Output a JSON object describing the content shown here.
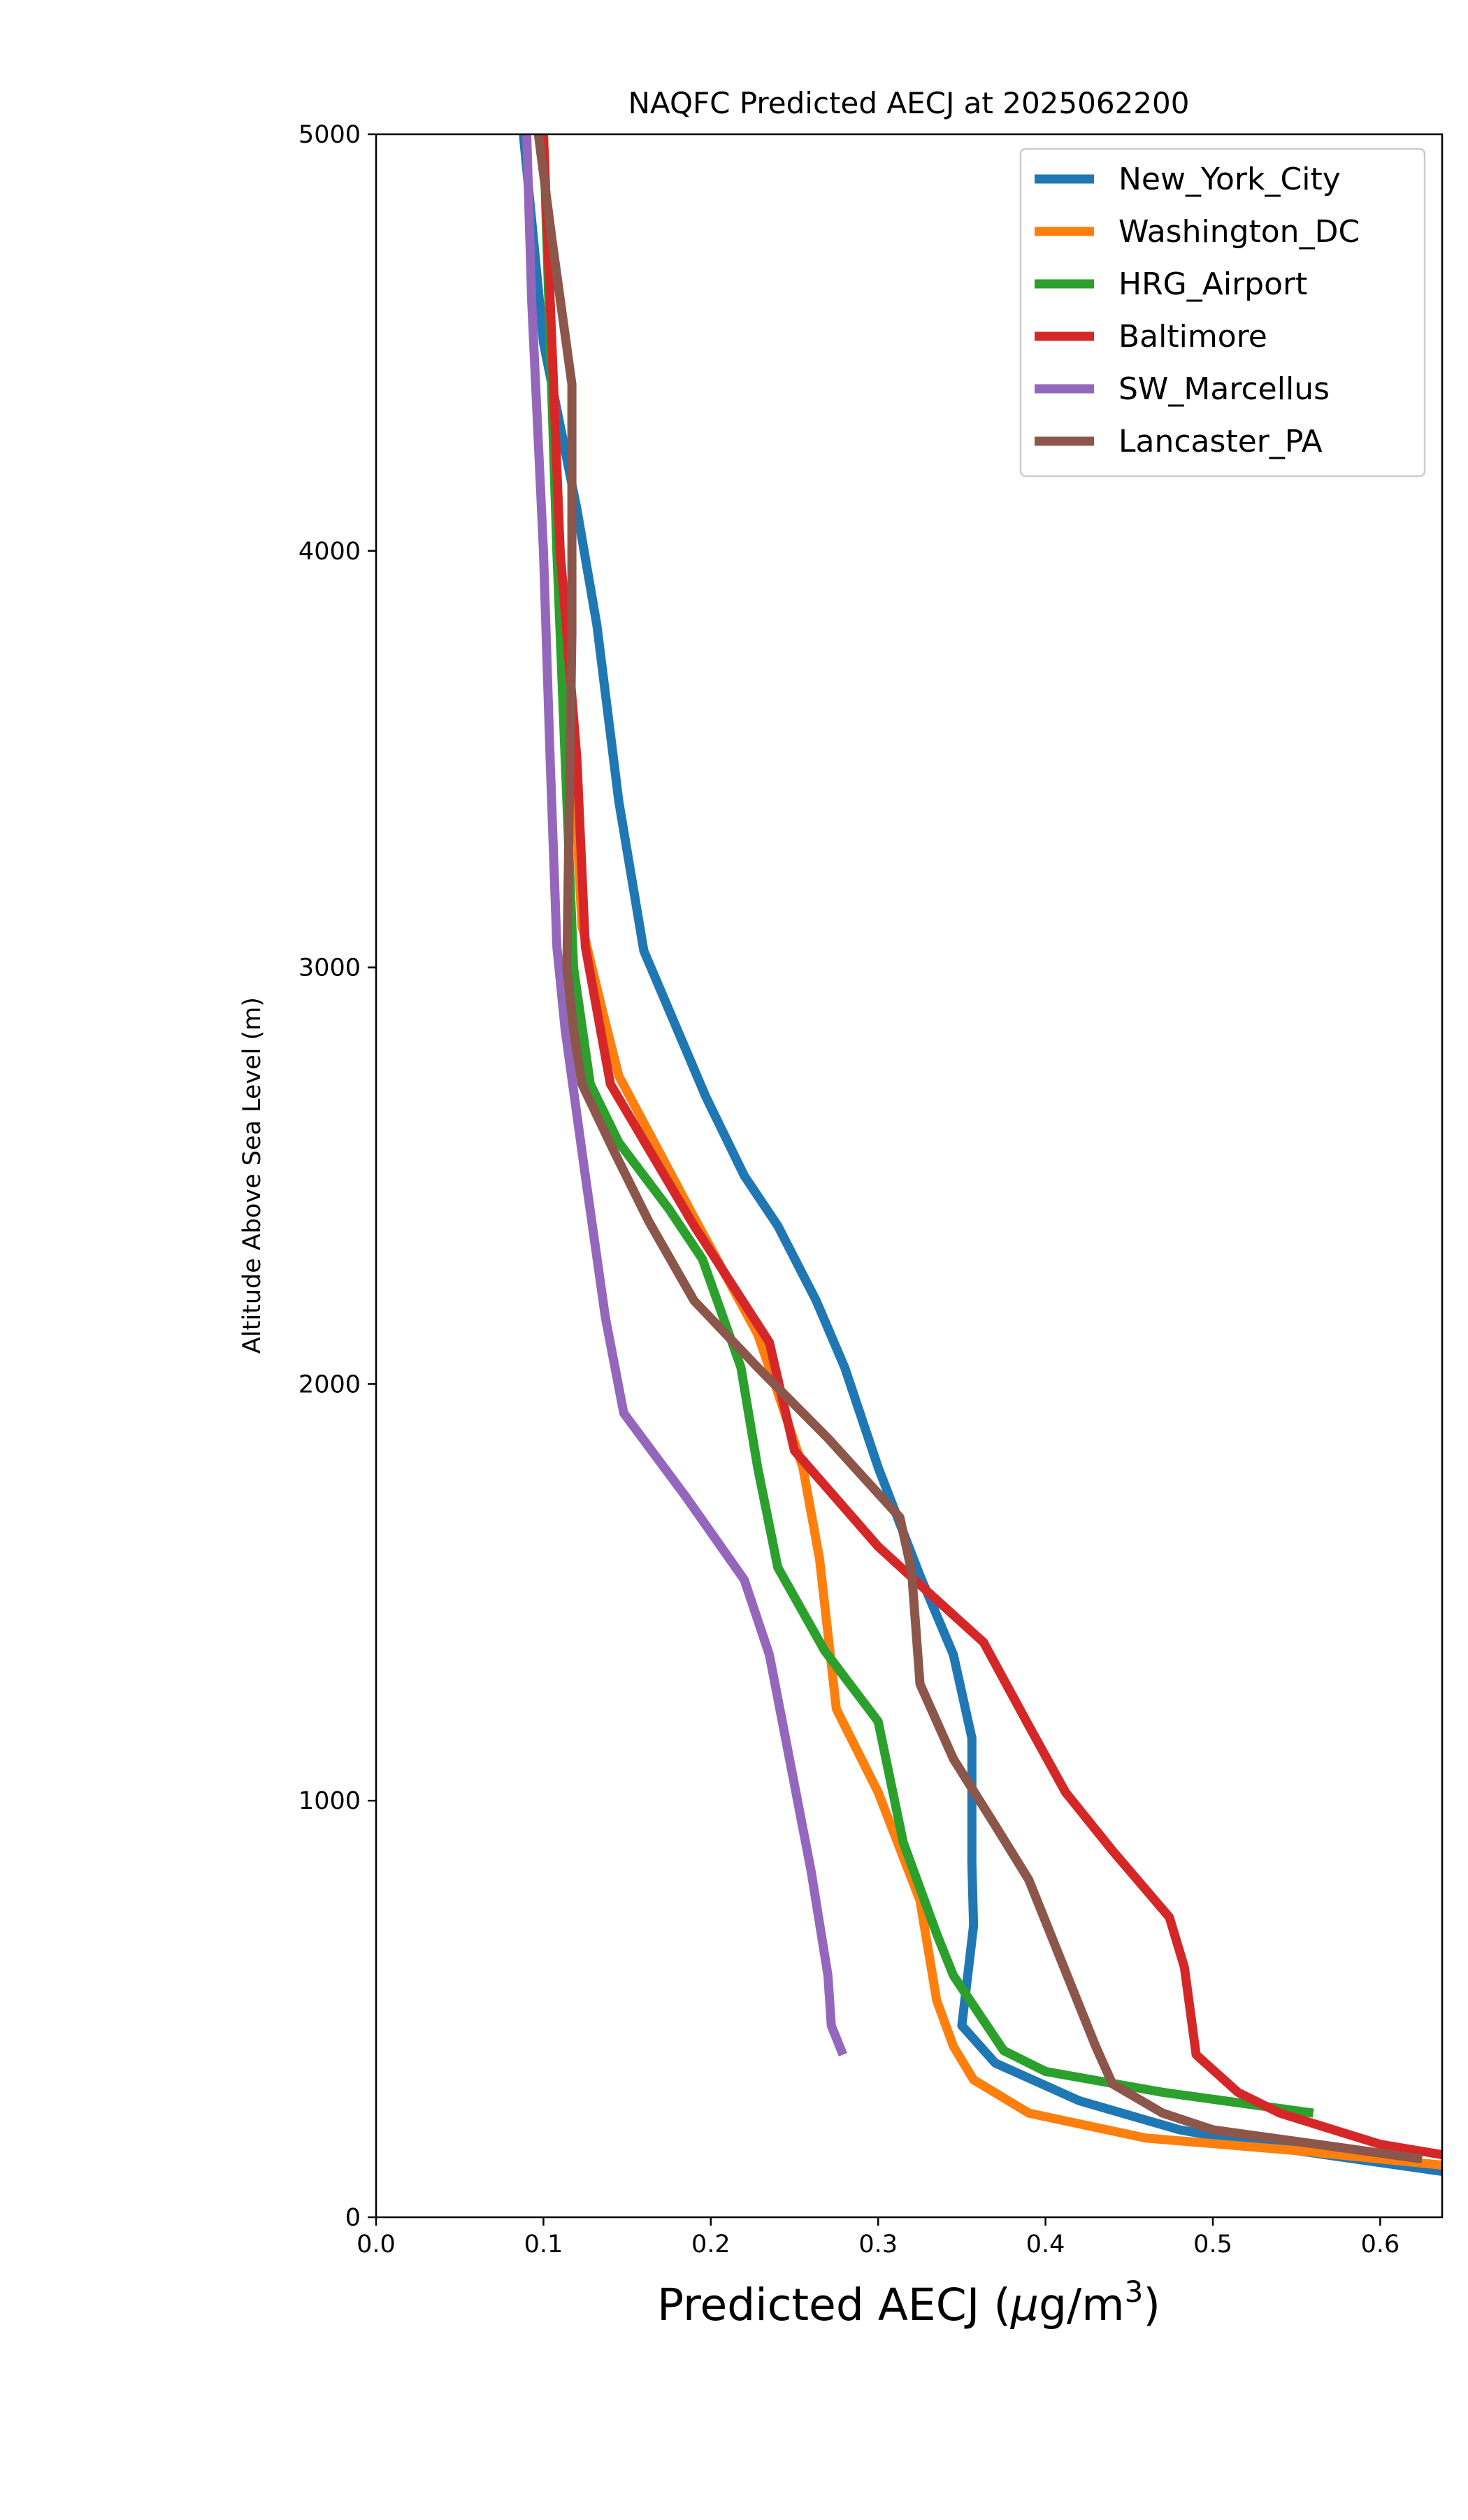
{
  "chart_data": {
    "type": "line",
    "title": "NAQFC Predicted AECJ at 2025062200",
    "xlabel": "Predicted AECJ (μg/m³)",
    "xlabel_main": "Predicted AECJ (",
    "xlabel_mu": "μ",
    "xlabel_unit": "g/m",
    "xlabel_sup": "3",
    "xlabel_close": ")",
    "ylabel": "Altitude Above Sea Level (m)",
    "xlim": [
      0.0,
      0.637
    ],
    "ylim": [
      0,
      5000
    ],
    "x_ticks": [
      {
        "value": 0.0,
        "label": "0.0"
      },
      {
        "value": 0.1,
        "label": "0.1"
      },
      {
        "value": 0.2,
        "label": "0.2"
      },
      {
        "value": 0.3,
        "label": "0.3"
      },
      {
        "value": 0.4,
        "label": "0.4"
      },
      {
        "value": 0.5,
        "label": "0.5"
      },
      {
        "value": 0.6,
        "label": "0.6"
      }
    ],
    "y_ticks": [
      {
        "value": 0,
        "label": "0"
      },
      {
        "value": 1000,
        "label": "1000"
      },
      {
        "value": 2000,
        "label": "2000"
      },
      {
        "value": 3000,
        "label": "3000"
      },
      {
        "value": 4000,
        "label": "4000"
      },
      {
        "value": 5000,
        "label": "5000"
      }
    ],
    "grid": false,
    "legend_position": "top-right",
    "series": [
      {
        "name": "New_York_City",
        "color": "#1f77b4",
        "points": [
          [
            0.637,
            110
          ],
          [
            0.55,
            160
          ],
          [
            0.48,
            210
          ],
          [
            0.42,
            280
          ],
          [
            0.37,
            370
          ],
          [
            0.35,
            460
          ],
          [
            0.357,
            700
          ],
          [
            0.356,
            850
          ],
          [
            0.356,
            1150
          ],
          [
            0.345,
            1350
          ],
          [
            0.325,
            1540
          ],
          [
            0.3,
            1800
          ],
          [
            0.28,
            2040
          ],
          [
            0.263,
            2200
          ],
          [
            0.24,
            2380
          ],
          [
            0.22,
            2500
          ],
          [
            0.197,
            2690
          ],
          [
            0.16,
            3040
          ],
          [
            0.145,
            3400
          ],
          [
            0.132,
            3820
          ],
          [
            0.12,
            4100
          ],
          [
            0.1,
            4500
          ],
          [
            0.088,
            5000
          ]
        ]
      },
      {
        "name": "Washington_DC",
        "color": "#ff7f0e",
        "points": [
          [
            0.637,
            125
          ],
          [
            0.55,
            160
          ],
          [
            0.46,
            190
          ],
          [
            0.39,
            250
          ],
          [
            0.357,
            330
          ],
          [
            0.345,
            410
          ],
          [
            0.335,
            520
          ],
          [
            0.325,
            760
          ],
          [
            0.3,
            1020
          ],
          [
            0.275,
            1220
          ],
          [
            0.265,
            1580
          ],
          [
            0.255,
            1800
          ],
          [
            0.24,
            1980
          ],
          [
            0.228,
            2120
          ],
          [
            0.19,
            2400
          ],
          [
            0.145,
            2740
          ],
          [
            0.135,
            2900
          ],
          [
            0.123,
            3100
          ],
          [
            0.118,
            3500
          ],
          [
            0.11,
            4000
          ],
          [
            0.105,
            4500
          ],
          [
            0.1,
            5000
          ]
        ]
      },
      {
        "name": "HRG_Airport",
        "color": "#2ca02c",
        "points": [
          [
            0.56,
            250
          ],
          [
            0.47,
            300
          ],
          [
            0.4,
            350
          ],
          [
            0.375,
            400
          ],
          [
            0.345,
            580
          ],
          [
            0.335,
            680
          ],
          [
            0.315,
            900
          ],
          [
            0.3,
            1190
          ],
          [
            0.268,
            1360
          ],
          [
            0.24,
            1560
          ],
          [
            0.228,
            1800
          ],
          [
            0.218,
            2040
          ],
          [
            0.195,
            2300
          ],
          [
            0.175,
            2420
          ],
          [
            0.145,
            2580
          ],
          [
            0.128,
            2720
          ],
          [
            0.118,
            3000
          ],
          [
            0.113,
            3500
          ],
          [
            0.108,
            4000
          ],
          [
            0.104,
            4500
          ],
          [
            0.1,
            5000
          ]
        ]
      },
      {
        "name": "Baltimore",
        "color": "#d62728",
        "points": [
          [
            0.637,
            150
          ],
          [
            0.6,
            175
          ],
          [
            0.54,
            250
          ],
          [
            0.515,
            300
          ],
          [
            0.49,
            390
          ],
          [
            0.483,
            600
          ],
          [
            0.474,
            720
          ],
          [
            0.44,
            880
          ],
          [
            0.412,
            1020
          ],
          [
            0.39,
            1180
          ],
          [
            0.363,
            1380
          ],
          [
            0.33,
            1500
          ],
          [
            0.3,
            1610
          ],
          [
            0.25,
            1840
          ],
          [
            0.235,
            2100
          ],
          [
            0.19,
            2380
          ],
          [
            0.14,
            2720
          ],
          [
            0.125,
            3050
          ],
          [
            0.12,
            3500
          ],
          [
            0.11,
            4000
          ],
          [
            0.105,
            4500
          ],
          [
            0.1,
            5000
          ]
        ]
      },
      {
        "name": "SW_Marcellus",
        "color": "#9467bd",
        "points": [
          [
            0.279,
            390
          ],
          [
            0.272,
            460
          ],
          [
            0.27,
            580
          ],
          [
            0.26,
            830
          ],
          [
            0.248,
            1080
          ],
          [
            0.235,
            1350
          ],
          [
            0.22,
            1530
          ],
          [
            0.185,
            1730
          ],
          [
            0.148,
            1930
          ],
          [
            0.137,
            2160
          ],
          [
            0.125,
            2500
          ],
          [
            0.113,
            2850
          ],
          [
            0.108,
            3050
          ],
          [
            0.104,
            3500
          ],
          [
            0.1,
            4000
          ],
          [
            0.093,
            4600
          ],
          [
            0.09,
            5000
          ]
        ]
      },
      {
        "name": "Lancaster_PA",
        "color": "#8c564b",
        "points": [
          [
            0.625,
            140
          ],
          [
            0.5,
            210
          ],
          [
            0.47,
            250
          ],
          [
            0.44,
            320
          ],
          [
            0.43,
            410
          ],
          [
            0.415,
            560
          ],
          [
            0.39,
            810
          ],
          [
            0.37,
            940
          ],
          [
            0.345,
            1100
          ],
          [
            0.325,
            1280
          ],
          [
            0.32,
            1550
          ],
          [
            0.313,
            1680
          ],
          [
            0.27,
            1870
          ],
          [
            0.228,
            2040
          ],
          [
            0.19,
            2200
          ],
          [
            0.163,
            2390
          ],
          [
            0.142,
            2560
          ],
          [
            0.123,
            2720
          ],
          [
            0.118,
            2850
          ],
          [
            0.114,
            3000
          ],
          [
            0.117,
            3800
          ],
          [
            0.117,
            4400
          ],
          [
            0.105,
            4750
          ],
          [
            0.097,
            5000
          ]
        ]
      }
    ]
  }
}
